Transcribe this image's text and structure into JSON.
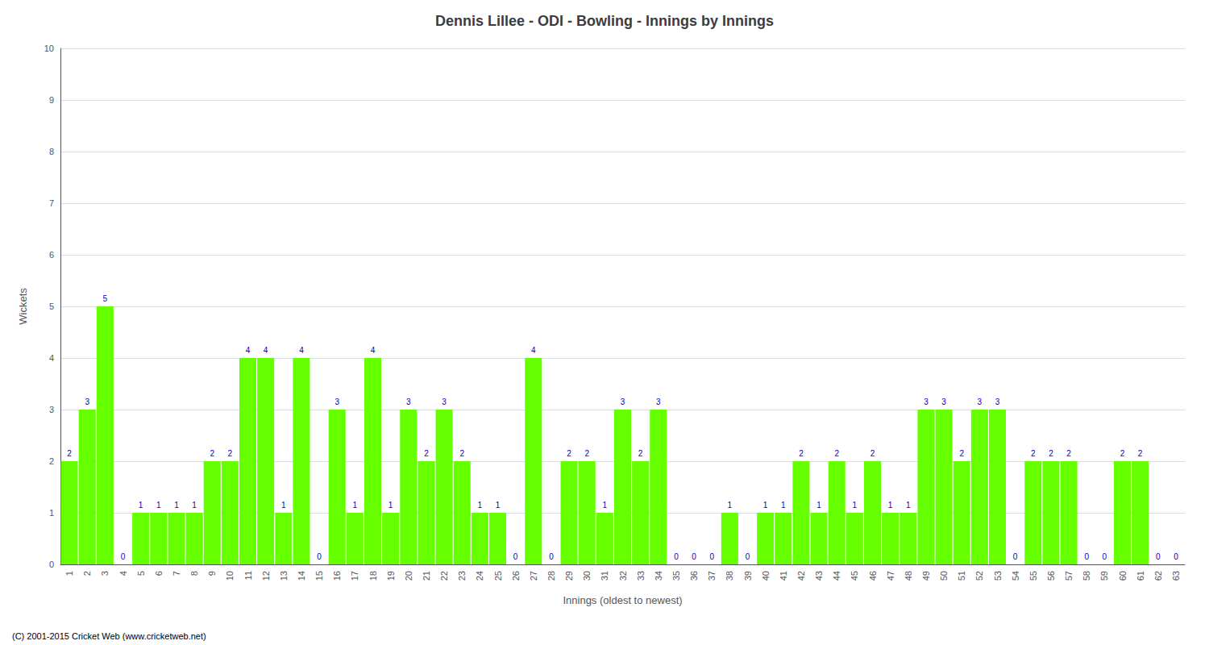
{
  "chart_data": {
    "type": "bar",
    "title": "Dennis Lillee - ODI - Bowling - Innings by Innings",
    "xlabel": "Innings (oldest to newest)",
    "ylabel": "Wickets",
    "categories": [
      "1",
      "2",
      "3",
      "4",
      "5",
      "6",
      "7",
      "8",
      "9",
      "10",
      "11",
      "12",
      "13",
      "14",
      "15",
      "16",
      "17",
      "18",
      "19",
      "20",
      "21",
      "22",
      "23",
      "24",
      "25",
      "26",
      "27",
      "28",
      "29",
      "30",
      "31",
      "32",
      "33",
      "34",
      "35",
      "36",
      "37",
      "38",
      "39",
      "40",
      "41",
      "42",
      "43",
      "44",
      "45",
      "46",
      "47",
      "48",
      "49",
      "50",
      "51",
      "52",
      "53",
      "54",
      "55",
      "56",
      "57",
      "58",
      "59",
      "60",
      "61",
      "62",
      "63"
    ],
    "values": [
      2,
      3,
      5,
      0,
      1,
      1,
      1,
      1,
      2,
      2,
      4,
      4,
      1,
      4,
      0,
      3,
      1,
      4,
      1,
      3,
      2,
      3,
      2,
      1,
      1,
      0,
      4,
      0,
      2,
      2,
      1,
      3,
      2,
      3,
      0,
      0,
      0,
      1,
      0,
      1,
      1,
      2,
      1,
      2,
      1,
      2,
      1,
      1,
      3,
      3,
      2,
      3,
      3,
      0,
      2,
      2,
      2,
      0,
      0,
      2,
      2,
      0,
      0
    ],
    "color": "#66ff00",
    "ylim": [
      0,
      10
    ],
    "yticks": [
      0,
      1,
      2,
      3,
      4,
      5,
      6,
      7,
      8,
      9,
      10
    ],
    "grid": true,
    "data_labels": true,
    "annotations": [
      "(C) 2001-2015 Cricket Web (www.cricketweb.net)"
    ]
  }
}
